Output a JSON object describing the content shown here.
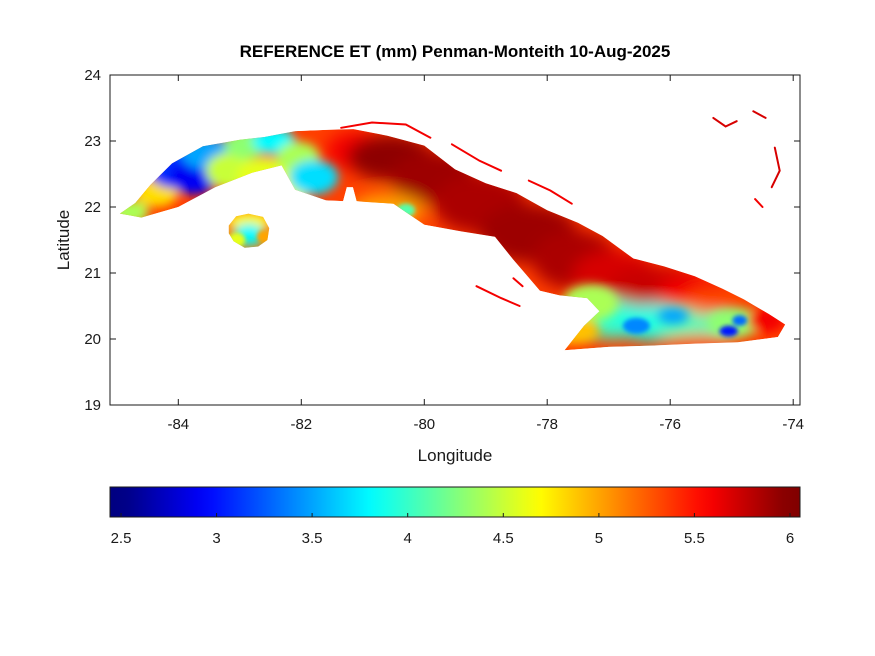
{
  "chart_data": {
    "type": "heatmap",
    "title": "REFERENCE ET (mm) Penman-Monteith 10-Aug-2025",
    "xlabel": "Longitude",
    "ylabel": "Latitude",
    "xlim": [
      -85.11,
      -73.89
    ],
    "ylim": [
      19,
      24
    ],
    "xticks": [
      -84,
      -82,
      -80,
      -78,
      -76,
      -74
    ],
    "yticks": [
      19,
      20,
      21,
      22,
      23,
      24
    ],
    "grid": false,
    "colormap": "jet",
    "colorbar": {
      "orientation": "horizontal",
      "position": "bottom",
      "vmin": 2.5,
      "vmax": 6,
      "ticks": [
        2.5,
        3,
        3.5,
        4,
        4.5,
        5,
        5.5,
        6
      ]
    },
    "mainland_base_et": 5.35,
    "isla_base_et": 5.15,
    "coastline": [
      [
        -84.95,
        21.9
      ],
      [
        -84.7,
        22.06
      ],
      [
        -84.45,
        22.34
      ],
      [
        -84.1,
        22.66
      ],
      [
        -83.6,
        22.92
      ],
      [
        -83.0,
        23.02
      ],
      [
        -82.6,
        23.06
      ],
      [
        -82.1,
        23.15
      ],
      [
        -81.55,
        23.17
      ],
      [
        -81.15,
        23.18
      ],
      [
        -80.6,
        23.08
      ],
      [
        -80.0,
        22.93
      ],
      [
        -79.5,
        22.57
      ],
      [
        -79.0,
        22.36
      ],
      [
        -78.5,
        22.21
      ],
      [
        -78.0,
        21.95
      ],
      [
        -77.5,
        21.76
      ],
      [
        -77.1,
        21.56
      ],
      [
        -76.6,
        21.22
      ],
      [
        -76.1,
        21.1
      ],
      [
        -75.6,
        20.95
      ],
      [
        -75.15,
        20.76
      ],
      [
        -74.8,
        20.6
      ],
      [
        -74.4,
        20.38
      ],
      [
        -74.13,
        20.22
      ],
      [
        -74.25,
        20.03
      ],
      [
        -74.9,
        19.95
      ],
      [
        -75.6,
        19.93
      ],
      [
        -76.3,
        19.9
      ],
      [
        -77.0,
        19.88
      ],
      [
        -77.72,
        19.83
      ],
      [
        -77.4,
        20.2
      ],
      [
        -77.15,
        20.42
      ],
      [
        -77.35,
        20.62
      ],
      [
        -77.8,
        20.66
      ],
      [
        -78.12,
        20.73
      ],
      [
        -78.55,
        21.2
      ],
      [
        -78.85,
        21.55
      ],
      [
        -79.4,
        21.63
      ],
      [
        -80.0,
        21.73
      ],
      [
        -80.5,
        22.05
      ],
      [
        -81.0,
        22.08
      ],
      [
        -81.1,
        22.09
      ],
      [
        -81.16,
        22.3
      ],
      [
        -81.26,
        22.3
      ],
      [
        -81.32,
        22.09
      ],
      [
        -81.6,
        22.1
      ],
      [
        -82.1,
        22.26
      ],
      [
        -82.32,
        22.63
      ],
      [
        -82.8,
        22.52
      ],
      [
        -83.4,
        22.3
      ],
      [
        -84.0,
        22.0
      ],
      [
        -84.6,
        21.84
      ]
    ],
    "isla_juventud": [
      [
        -83.18,
        21.72
      ],
      [
        -83.06,
        21.86
      ],
      [
        -82.86,
        21.9
      ],
      [
        -82.62,
        21.85
      ],
      [
        -82.52,
        21.68
      ],
      [
        -82.55,
        21.5
      ],
      [
        -82.7,
        21.4
      ],
      [
        -82.92,
        21.38
      ],
      [
        -83.1,
        21.48
      ],
      [
        -83.18,
        21.6
      ]
    ],
    "patches_columns": [
      "lon",
      "lat",
      "rx_deg",
      "ry_deg",
      "et_mm"
    ],
    "patches": [
      [
        -84.78,
        21.92,
        0.3,
        0.18,
        4.4
      ],
      [
        -84.35,
        22.22,
        0.35,
        0.22,
        4.8
      ],
      [
        -84.3,
        22.72,
        0.3,
        0.2,
        3.4
      ],
      [
        -84.05,
        22.58,
        0.45,
        0.3,
        3.1
      ],
      [
        -83.75,
        22.45,
        0.4,
        0.26,
        2.9
      ],
      [
        -83.5,
        22.8,
        0.45,
        0.24,
        3.5
      ],
      [
        -83.15,
        22.55,
        0.4,
        0.28,
        4.5
      ],
      [
        -82.9,
        22.95,
        0.35,
        0.22,
        4.3
      ],
      [
        -82.45,
        23.0,
        0.35,
        0.2,
        3.8
      ],
      [
        -82.6,
        22.45,
        0.45,
        0.3,
        4.6
      ],
      [
        -82.2,
        22.2,
        0.3,
        0.2,
        4.6
      ],
      [
        -82.05,
        22.75,
        0.35,
        0.24,
        4.4
      ],
      [
        -81.8,
        22.45,
        0.4,
        0.26,
        3.7
      ],
      [
        -81.1,
        22.85,
        0.5,
        0.3,
        5.6
      ],
      [
        -80.55,
        22.75,
        0.7,
        0.35,
        5.95
      ],
      [
        -79.85,
        22.45,
        0.7,
        0.4,
        5.9
      ],
      [
        -79.1,
        22.05,
        0.75,
        0.45,
        5.85
      ],
      [
        -78.3,
        21.6,
        0.8,
        0.45,
        5.9
      ],
      [
        -77.55,
        21.2,
        0.7,
        0.45,
        5.85
      ],
      [
        -76.9,
        20.95,
        0.7,
        0.4,
        5.7
      ],
      [
        -76.2,
        20.8,
        0.8,
        0.3,
        5.75
      ],
      [
        -75.6,
        20.7,
        0.6,
        0.25,
        5.6
      ],
      [
        -80.6,
        21.95,
        0.6,
        0.25,
        5.0
      ],
      [
        -80.3,
        21.95,
        0.15,
        0.1,
        4.1
      ],
      [
        -77.3,
        20.55,
        0.45,
        0.28,
        4.4
      ],
      [
        -76.95,
        20.3,
        0.55,
        0.3,
        4.0
      ],
      [
        -76.3,
        20.25,
        0.6,
        0.28,
        3.9
      ],
      [
        -75.6,
        20.2,
        0.6,
        0.28,
        4.05
      ],
      [
        -74.95,
        20.25,
        0.45,
        0.22,
        4.3
      ],
      [
        -76.55,
        20.2,
        0.22,
        0.12,
        3.4
      ],
      [
        -75.95,
        20.35,
        0.25,
        0.12,
        3.5
      ],
      [
        -75.05,
        20.12,
        0.15,
        0.08,
        3.0
      ],
      [
        -74.87,
        20.28,
        0.12,
        0.08,
        3.3
      ],
      [
        -74.45,
        20.28,
        0.3,
        0.18,
        5.6
      ],
      [
        -75.4,
        19.97,
        0.7,
        0.1,
        5.3
      ],
      [
        -77.55,
        20.12,
        0.4,
        0.2,
        4.9
      ],
      [
        -75.3,
        20.55,
        0.5,
        0.18,
        5.3
      ],
      [
        -82.85,
        21.78,
        0.35,
        0.14,
        4.7
      ],
      [
        -82.85,
        21.58,
        0.25,
        0.17,
        3.8
      ],
      [
        -83.05,
        21.5,
        0.14,
        0.11,
        4.6
      ],
      [
        -82.6,
        21.55,
        0.12,
        0.1,
        5.0
      ]
    ],
    "cays": [
      {
        "points": [
          [
            -81.35,
            23.2
          ],
          [
            -80.85,
            23.28
          ],
          [
            -80.3,
            23.25
          ],
          [
            -79.9,
            23.05
          ]
        ],
        "et": 5.6
      },
      {
        "points": [
          [
            -79.55,
            22.95
          ],
          [
            -79.1,
            22.7
          ],
          [
            -78.75,
            22.55
          ]
        ],
        "et": 5.6
      },
      {
        "points": [
          [
            -78.3,
            22.4
          ],
          [
            -77.95,
            22.25
          ],
          [
            -77.6,
            22.05
          ]
        ],
        "et": 5.6
      },
      {
        "points": [
          [
            -75.3,
            23.35
          ],
          [
            -75.1,
            23.22
          ],
          [
            -74.92,
            23.3
          ]
        ],
        "et": 5.7
      },
      {
        "points": [
          [
            -74.3,
            22.9
          ],
          [
            -74.22,
            22.55
          ],
          [
            -74.35,
            22.3
          ]
        ],
        "et": 5.7
      },
      {
        "points": [
          [
            -74.62,
            22.12
          ],
          [
            -74.5,
            22.0
          ]
        ],
        "et": 5.6
      },
      {
        "points": [
          [
            -79.15,
            20.8
          ],
          [
            -78.75,
            20.62
          ],
          [
            -78.45,
            20.5
          ]
        ],
        "et": 5.6
      },
      {
        "points": [
          [
            -78.55,
            20.92
          ],
          [
            -78.4,
            20.8
          ]
        ],
        "et": 5.6
      },
      {
        "points": [
          [
            -74.65,
            23.45
          ],
          [
            -74.45,
            23.35
          ]
        ],
        "et": 5.7
      }
    ]
  }
}
